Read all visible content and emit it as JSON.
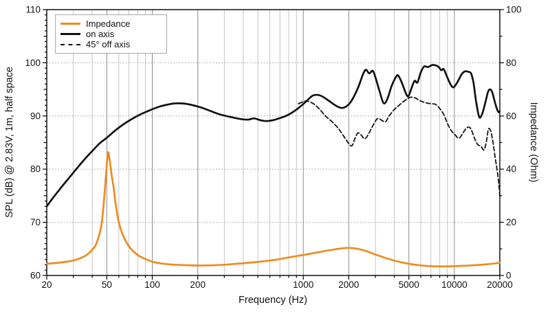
{
  "chart_data": {
    "type": "line",
    "title": "",
    "xlabel": "Frequency (Hz)",
    "ylabel_left": "SPL (dB) @ 2.83V, 1m, half space",
    "ylabel_right": "Impedance (Ohm)",
    "x_scale": "log",
    "xlim": [
      20,
      20000
    ],
    "ylim_left": [
      60,
      110
    ],
    "ylim_right": [
      0,
      100
    ],
    "grid": "on",
    "legend_position": "top-left",
    "xticks_labeled": [
      20,
      50,
      100,
      200,
      1000,
      2000,
      5000,
      10000,
      20000
    ],
    "xtick_labels": [
      "20",
      "50",
      "100",
      "200",
      "1000",
      "2000",
      "5000",
      "10000",
      "20000"
    ],
    "yticks_left": [
      60,
      70,
      80,
      90,
      100,
      110
    ],
    "ytick_labels_left": [
      "60",
      "70",
      "80",
      "90",
      "100",
      "110"
    ],
    "yticks_right": [
      0,
      20,
      40,
      60,
      80,
      100
    ],
    "ytick_labels_right": [
      "0",
      "20",
      "40",
      "60",
      "80",
      "100"
    ],
    "legend": [
      {
        "label": "Impedance",
        "color": "#F08A1E",
        "style": "solid"
      },
      {
        "label": "on axis",
        "color": "#111111",
        "style": "solid"
      },
      {
        "label": "45° off axis",
        "color": "#111111",
        "style": "dashed"
      }
    ],
    "series": [
      {
        "name": "Impedance",
        "axis": "right",
        "unit": "Ohm",
        "color": "#F08A1E",
        "style": "solid",
        "width": 2.7,
        "points": [
          [
            20,
            4.4
          ],
          [
            24,
            4.8
          ],
          [
            28,
            5.3
          ],
          [
            32,
            6.1
          ],
          [
            36,
            7.4
          ],
          [
            40,
            9.6
          ],
          [
            43,
            12.5
          ],
          [
            46,
            19
          ],
          [
            48,
            29
          ],
          [
            50,
            42
          ],
          [
            51,
            46.3
          ],
          [
            52,
            44
          ],
          [
            54,
            37
          ],
          [
            55.5,
            33
          ],
          [
            57,
            27.5
          ],
          [
            60,
            20
          ],
          [
            64,
            15
          ],
          [
            70,
            11
          ],
          [
            78,
            8.2
          ],
          [
            88,
            6.4
          ],
          [
            100,
            5.2
          ],
          [
            115,
            4.5
          ],
          [
            135,
            4.1
          ],
          [
            160,
            3.9
          ],
          [
            200,
            3.75
          ],
          [
            260,
            3.85
          ],
          [
            330,
            4.2
          ],
          [
            420,
            4.7
          ],
          [
            520,
            5.2
          ],
          [
            650,
            5.9
          ],
          [
            800,
            6.8
          ],
          [
            1000,
            7.7
          ],
          [
            1250,
            8.7
          ],
          [
            1500,
            9.5
          ],
          [
            1750,
            10.1
          ],
          [
            2000,
            10.4
          ],
          [
            2300,
            10.0
          ],
          [
            2600,
            9.2
          ],
          [
            3000,
            7.9
          ],
          [
            3500,
            6.6
          ],
          [
            4200,
            5.3
          ],
          [
            5000,
            4.4
          ],
          [
            6000,
            3.8
          ],
          [
            7000,
            3.5
          ],
          [
            8500,
            3.4
          ],
          [
            10000,
            3.5
          ],
          [
            12000,
            3.7
          ],
          [
            14000,
            3.9
          ],
          [
            16500,
            4.2
          ],
          [
            19000,
            4.6
          ],
          [
            20000,
            4.8
          ]
        ]
      },
      {
        "name": "on axis",
        "axis": "left",
        "unit": "dB",
        "color": "#111111",
        "style": "solid",
        "width": 2.7,
        "points": [
          [
            20,
            73.0
          ],
          [
            22,
            74.6
          ],
          [
            25,
            76.6
          ],
          [
            28,
            78.3
          ],
          [
            32,
            80.3
          ],
          [
            36,
            82.0
          ],
          [
            40,
            83.4
          ],
          [
            45,
            84.9
          ],
          [
            50,
            85.9
          ],
          [
            57,
            87.3
          ],
          [
            65,
            88.5
          ],
          [
            75,
            89.6
          ],
          [
            85,
            90.4
          ],
          [
            95,
            91.0
          ],
          [
            110,
            91.7
          ],
          [
            125,
            92.1
          ],
          [
            140,
            92.35
          ],
          [
            160,
            92.35
          ],
          [
            180,
            92.1
          ],
          [
            210,
            91.6
          ],
          [
            240,
            91.0
          ],
          [
            280,
            90.3
          ],
          [
            330,
            89.8
          ],
          [
            380,
            89.45
          ],
          [
            430,
            89.3
          ],
          [
            470,
            89.55
          ],
          [
            520,
            89.2
          ],
          [
            570,
            89.05
          ],
          [
            630,
            89.2
          ],
          [
            700,
            89.6
          ],
          [
            780,
            90.1
          ],
          [
            860,
            90.8
          ],
          [
            950,
            91.7
          ],
          [
            1050,
            92.8
          ],
          [
            1150,
            93.8
          ],
          [
            1250,
            93.95
          ],
          [
            1350,
            93.6
          ],
          [
            1500,
            92.7
          ],
          [
            1650,
            91.9
          ],
          [
            1800,
            91.5
          ],
          [
            1950,
            91.9
          ],
          [
            2100,
            93.0
          ],
          [
            2300,
            95.3
          ],
          [
            2480,
            97.8
          ],
          [
            2600,
            98.7
          ],
          [
            2730,
            98.0
          ],
          [
            2880,
            98.5
          ],
          [
            3000,
            97.3
          ],
          [
            3200,
            94.6
          ],
          [
            3400,
            92.4
          ],
          [
            3600,
            93.2
          ],
          [
            3850,
            95.7
          ],
          [
            4100,
            97.3
          ],
          [
            4250,
            97.6
          ],
          [
            4500,
            96.2
          ],
          [
            4750,
            94.4
          ],
          [
            4950,
            93.7
          ],
          [
            5200,
            95.2
          ],
          [
            5450,
            96.6
          ],
          [
            5700,
            96.3
          ],
          [
            6000,
            98.2
          ],
          [
            6300,
            99.3
          ],
          [
            6700,
            99.2
          ],
          [
            7200,
            99.6
          ],
          [
            7800,
            99.3
          ],
          [
            8200,
            98.6
          ],
          [
            8500,
            98.8
          ],
          [
            9000,
            97.2
          ],
          [
            9500,
            95.8
          ],
          [
            9900,
            95.4
          ],
          [
            10500,
            96.4
          ],
          [
            11200,
            97.9
          ],
          [
            11800,
            98.4
          ],
          [
            12400,
            98.3
          ],
          [
            12900,
            98.0
          ],
          [
            13400,
            96.2
          ],
          [
            13900,
            92.9
          ],
          [
            14600,
            89.8
          ],
          [
            15300,
            90.4
          ],
          [
            16000,
            92.4
          ],
          [
            16700,
            94.5
          ],
          [
            17200,
            95.0
          ],
          [
            17800,
            94.5
          ],
          [
            18500,
            92.7
          ],
          [
            19200,
            91.2
          ],
          [
            19700,
            90.7
          ],
          [
            20000,
            90.9
          ]
        ]
      },
      {
        "name": "45° off axis",
        "axis": "left",
        "unit": "dB",
        "color": "#111111",
        "style": "dashed",
        "width": 1.8,
        "points": [
          [
            930,
            92.3
          ],
          [
            1040,
            92.8
          ],
          [
            1150,
            92.4
          ],
          [
            1270,
            91.4
          ],
          [
            1400,
            90.0
          ],
          [
            1550,
            88.9
          ],
          [
            1700,
            87.7
          ],
          [
            1850,
            86.2
          ],
          [
            2000,
            84.8
          ],
          [
            2100,
            84.4
          ],
          [
            2200,
            85.8
          ],
          [
            2300,
            86.8
          ],
          [
            2420,
            86.4
          ],
          [
            2550,
            85.7
          ],
          [
            2700,
            86.6
          ],
          [
            2900,
            88.3
          ],
          [
            3100,
            89.5
          ],
          [
            3300,
            89.2
          ],
          [
            3500,
            88.9
          ],
          [
            3700,
            90.0
          ],
          [
            4000,
            91.2
          ],
          [
            4300,
            92.0
          ],
          [
            4700,
            92.9
          ],
          [
            5100,
            93.5
          ],
          [
            5500,
            93.4
          ],
          [
            5900,
            92.9
          ],
          [
            6400,
            92.5
          ],
          [
            7000,
            92.3
          ],
          [
            7500,
            92.2
          ],
          [
            8000,
            91.4
          ],
          [
            8500,
            90.3
          ],
          [
            9000,
            88.6
          ],
          [
            9500,
            87.3
          ],
          [
            10000,
            86.6
          ],
          [
            10700,
            85.8
          ],
          [
            11300,
            86.6
          ],
          [
            11900,
            87.6
          ],
          [
            12500,
            87.9
          ],
          [
            13000,
            87.3
          ],
          [
            13600,
            85.8
          ],
          [
            14300,
            84.6
          ],
          [
            15000,
            84.3
          ],
          [
            15700,
            83.6
          ],
          [
            16300,
            85.2
          ],
          [
            16800,
            87.5
          ],
          [
            17400,
            87.2
          ],
          [
            18000,
            85.2
          ],
          [
            18600,
            82.3
          ],
          [
            19200,
            79.8
          ],
          [
            19700,
            77.2
          ],
          [
            20000,
            74.9
          ]
        ]
      }
    ]
  },
  "colors": {
    "background": "#ffffff",
    "frame": "#000000",
    "grid_minor": "#c4c4c4",
    "grid_major": "#8c8c8c",
    "grid_horizontal": "#9a9a9a",
    "accent_orange": "#F08A1E",
    "curve_black": "#111111"
  }
}
